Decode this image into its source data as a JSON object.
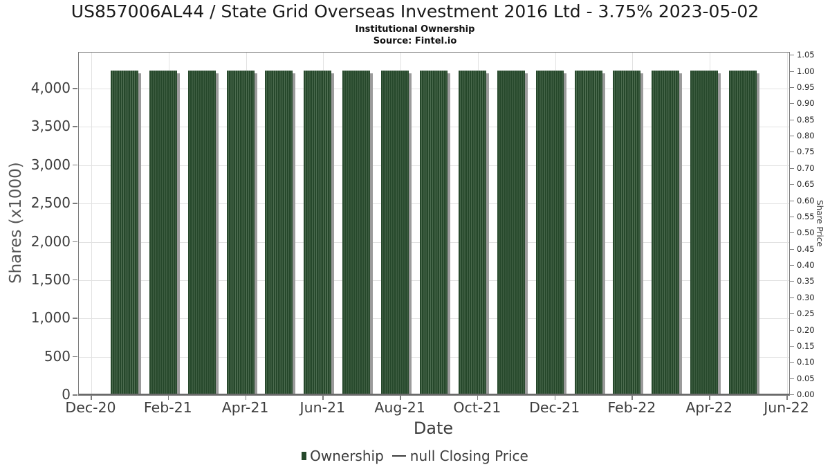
{
  "header": {
    "title": "US857006AL44 / State Grid Overseas Investment 2016 Ltd - 3.75% 2023-05-02",
    "subtitle": "Institutional Ownership",
    "source": "Source: Fintel.io"
  },
  "colors": {
    "bar": "#26482b",
    "bar_stripe": "#4d6c50",
    "bar_shadow": "#9b9b9b",
    "grid": "#e2e2e2",
    "axis_border": "#7d7d7d",
    "tick_label": "#3d3d3d",
    "axis_title": "#555555"
  },
  "chart_data": {
    "type": "bar",
    "title": "US857006AL44 / State Grid Overseas Investment 2016 Ltd - 3.75% 2023-05-02",
    "subtitle": "Institutional Ownership",
    "source": "Source: Fintel.io",
    "xlabel": "Date",
    "ylabel": "Shares (x1000)",
    "ylabel_right": "Share Price",
    "categories": [
      "Jan-21",
      "Feb-21",
      "Mar-21",
      "Apr-21",
      "May-21",
      "Jun-21",
      "Jul-21",
      "Aug-21",
      "Sep-21",
      "Oct-21",
      "Nov-21",
      "Dec-21",
      "Jan-22",
      "Feb-22",
      "Mar-22",
      "Apr-22",
      "May-22"
    ],
    "series": [
      {
        "name": "Ownership",
        "type": "bar",
        "values": [
          4240,
          4240,
          4240,
          4240,
          4240,
          4240,
          4240,
          4240,
          4240,
          4240,
          4240,
          4240,
          4240,
          4240,
          4240,
          4240,
          4240
        ]
      },
      {
        "name": "null Closing Price",
        "type": "line",
        "values": null
      }
    ],
    "x_axis": {
      "tick_labels": [
        "Dec-20",
        "Feb-21",
        "Apr-21",
        "Jun-21",
        "Aug-21",
        "Oct-21",
        "Dec-21",
        "Feb-22",
        "Apr-22",
        "Jun-22"
      ],
      "months_span": 18
    },
    "y_left": {
      "tick_labels": [
        "0",
        "500",
        "1,000",
        "1,500",
        "2,000",
        "2,500",
        "3,000",
        "3,500",
        "4,000"
      ],
      "max": 4470,
      "min": 0
    },
    "y_right": {
      "tick_labels": [
        "0.00",
        "0.05",
        "0.10",
        "0.15",
        "0.20",
        "0.25",
        "0.30",
        "0.35",
        "0.40",
        "0.45",
        "0.50",
        "0.55",
        "0.60",
        "0.65",
        "0.70",
        "0.75",
        "0.80",
        "0.85",
        "0.90",
        "0.95",
        "1.00",
        "1.05"
      ],
      "max": 1.059,
      "min": 0
    },
    "grid": true,
    "legend": {
      "position": "bottom-center",
      "items": [
        {
          "label": "Ownership",
          "marker": "square",
          "color": "#26482b"
        },
        {
          "label": "null Closing Price",
          "marker": "dash",
          "color": "#3d3d3d"
        }
      ]
    }
  }
}
